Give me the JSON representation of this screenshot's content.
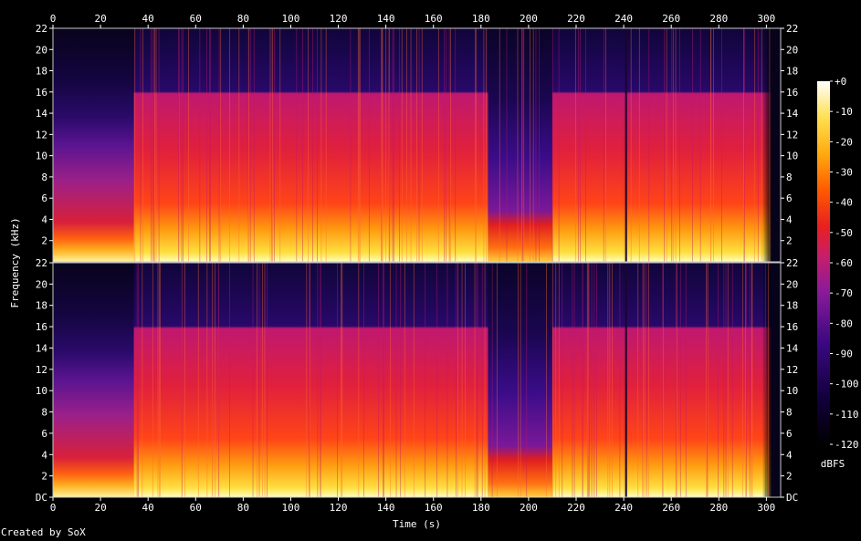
{
  "footer": {
    "credit": "Created by SoX"
  },
  "chart_data": {
    "type": "heatmap",
    "title": "",
    "xlabel": "Time (s)",
    "ylabel": "Frequency (kHz)",
    "xlim": [
      0,
      306
    ],
    "x_ticks": [
      "0",
      "20",
      "40",
      "60",
      "80",
      "100",
      "120",
      "140",
      "160",
      "180",
      "200",
      "220",
      "240",
      "260",
      "280",
      "300"
    ],
    "y_ticks_top": [
      "2",
      "4",
      "6",
      "8",
      "10",
      "12",
      "14",
      "16",
      "18",
      "20",
      "22"
    ],
    "y_ticks_bottom": [
      "DC",
      "2",
      "4",
      "6",
      "8",
      "10",
      "12",
      "14",
      "16",
      "18",
      "20",
      "22"
    ],
    "ylim_khz": [
      0,
      22
    ],
    "channels": 2,
    "colorbar": {
      "label": "dBFS",
      "ticks": [
        "+0",
        "-10",
        "-20",
        "-30",
        "-40",
        "-50",
        "-60",
        "-70",
        "-80",
        "-90",
        "-100",
        "-110",
        "-120"
      ],
      "range_db": [
        -120,
        0
      ]
    },
    "segments": [
      {
        "start_s": 0,
        "end_s": 34,
        "description": "quiet intro, energy mostly below 4 kHz, faint to ~13 kHz"
      },
      {
        "start_s": 34,
        "end_s": 183,
        "description": "loud, lowpass at ~16 kHz"
      },
      {
        "start_s": 183,
        "end_s": 210,
        "description": "quieter bridge, energy below ~5 kHz"
      },
      {
        "start_s": 210,
        "end_s": 240,
        "description": "loud, lowpass at ~16 kHz"
      },
      {
        "start_s": 240,
        "end_s": 302,
        "description": "loud, lowpass at ~16 kHz, fade out at end"
      }
    ],
    "colors": {
      "background": "#000000",
      "foreground": "#ffffff"
    }
  }
}
